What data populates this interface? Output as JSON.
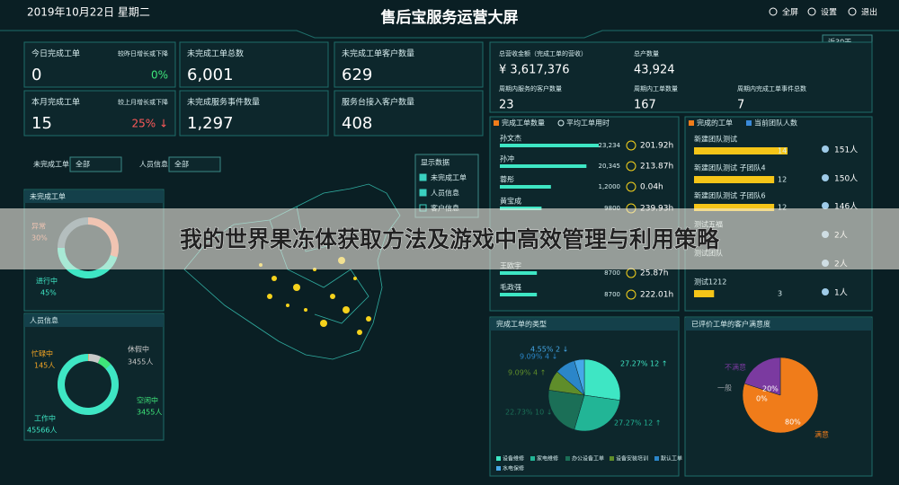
{
  "header": {
    "date": "2019年10月22日 星期二",
    "title": "售后宝服务运营大屏",
    "actions": [
      "全屏",
      "设置",
      "退出"
    ],
    "period": "近30天"
  },
  "kpis": [
    {
      "label": "今日完成工单",
      "value": "0",
      "compare_label": "较昨日增长或下降",
      "compare": "0%"
    },
    {
      "label": "未完成工单总数",
      "value": "6,001"
    },
    {
      "label": "未完成工单客户数量",
      "value": "629"
    },
    {
      "label": "本月完成工单",
      "value": "15",
      "compare_label": "较上月增长或下降",
      "compare": "25% ↓"
    },
    {
      "label": "未完成服务事件数量",
      "value": "1,297"
    },
    {
      "label": "服务台接入客户数量",
      "value": "408"
    }
  ],
  "stats": [
    {
      "label": "总营收金额（完成工单的营收）",
      "value": "¥ 3,617,376"
    },
    {
      "label": "总产数量",
      "value": "43,924"
    },
    {
      "label": "周期内服务的客户数量",
      "value": "23"
    },
    {
      "label": "周期内工单数量",
      "value": "167"
    },
    {
      "label": "周期内完成工单事件总数",
      "value": "7"
    }
  ],
  "filters": [
    {
      "label": "未完成工单",
      "value": "全部"
    },
    {
      "label": "人员信息",
      "value": "全部"
    }
  ],
  "display": {
    "title": "显示数据",
    "options": [
      "未完成工单",
      "人员信息",
      "客户信息"
    ]
  },
  "unfinished": {
    "title": "未完成工单",
    "segments": [
      {
        "name": "异常",
        "value": 30,
        "label": "30%"
      },
      {
        "name": "进行中",
        "value": 45,
        "label": "45%"
      }
    ]
  },
  "staff": {
    "title": "人员信息",
    "segments": [
      {
        "name": "忙碌中",
        "value": 145,
        "label": "145人"
      },
      {
        "name": "休假中",
        "value": 3455,
        "label": "3455人"
      },
      {
        "name": "空闲中",
        "value": 3455,
        "label": "3455人"
      },
      {
        "name": "工作中",
        "value": 45566,
        "label": "45566人"
      }
    ]
  },
  "ranking": {
    "legend": [
      "完成工单数量",
      "平均工单用时"
    ],
    "rows": [
      {
        "name": "孙文杰",
        "count": 23234,
        "count_label": "23,234",
        "time": "201.92h"
      },
      {
        "name": "孙冲",
        "count": 20345,
        "count_label": "20,345",
        "time": "213.87h"
      },
      {
        "name": "蓉彤",
        "count": 12000,
        "count_label": "1,2000",
        "time": "0.04h"
      },
      {
        "name": "黄宝成",
        "count": 9800,
        "time": "239.93h"
      },
      {
        "name": "王欧宇",
        "count": 8700,
        "time": "25.87h"
      },
      {
        "name": "毛政强",
        "count": 8700,
        "time": "222.01h"
      }
    ]
  },
  "teams": {
    "legend": [
      "完成的工单",
      "当前团队人数"
    ],
    "rows": [
      {
        "name": "新建团队测试",
        "count": 14,
        "members": "151人"
      },
      {
        "name": "新建团队测试 子团队4",
        "count": 12,
        "members": "150人"
      },
      {
        "name": "新建团队测试 子团队6",
        "count": 12,
        "members": "146人"
      },
      {
        "name": "测试五福",
        "members": "2人"
      },
      {
        "name": "测试团队",
        "members": "2人"
      },
      {
        "name": "测试1212",
        "count": 3,
        "members": "1人"
      }
    ]
  },
  "types": {
    "title": "完成工单的类型",
    "slices": [
      {
        "name": "设备维修",
        "value": 12,
        "label": "27.27% 12 ↑",
        "color": "#3ee6c4"
      },
      {
        "name": "家电维修",
        "value": 12,
        "label": "27.27% 12 ↑",
        "color": "#22b596"
      },
      {
        "name": "办公设备工单",
        "value": 10,
        "label": "22.73% 10 ↓",
        "color": "#1b6f57"
      },
      {
        "name": "设备安装培训",
        "value": 4,
        "label": "9.09% 4 ↑",
        "color": "#5f8d2a"
      },
      {
        "name": "默认工单",
        "value": 4,
        "label": "9.09% 4 ↓",
        "color": "#2b86c9"
      },
      {
        "name": "水电保修",
        "value": 2,
        "label": "4.55% 2 ↓",
        "color": "#46a8e8"
      }
    ]
  },
  "satisfaction": {
    "title": "已评价工单的客户满意度",
    "slices": [
      {
        "name": "满意",
        "value": 80,
        "label": "80%",
        "color": "#f07c1a"
      },
      {
        "name": "不满意",
        "value": 20,
        "label": "20%",
        "color": "#7b3aa0"
      },
      {
        "name": "一般",
        "value": 0,
        "label": "0%",
        "color": "#9aa0a6"
      }
    ]
  },
  "banner": "我的世界果冻体获取方法及游戏中高效管理与利用策略"
}
